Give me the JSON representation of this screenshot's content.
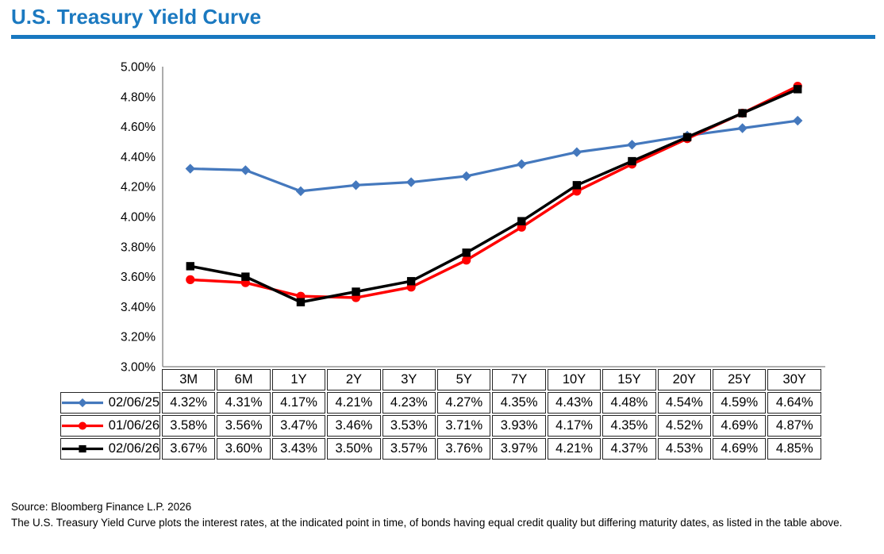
{
  "header": {
    "title": "U.S. Treasury Yield Curve",
    "accent_color": "#1B79C0"
  },
  "chart_data": {
    "type": "line",
    "title": "U.S. Treasury Yield Curve",
    "categories": [
      "3M",
      "6M",
      "1Y",
      "2Y",
      "3Y",
      "5Y",
      "7Y",
      "10Y",
      "15Y",
      "20Y",
      "25Y",
      "30Y"
    ],
    "series": [
      {
        "name": "02/06/25",
        "marker": "diamond",
        "color": "#4478BD",
        "values": [
          4.32,
          4.31,
          4.17,
          4.21,
          4.23,
          4.27,
          4.35,
          4.43,
          4.48,
          4.54,
          4.59,
          4.64
        ]
      },
      {
        "name": "01/06/26",
        "marker": "circle",
        "color": "#FF0000",
        "values": [
          3.58,
          3.56,
          3.47,
          3.46,
          3.53,
          3.71,
          3.93,
          4.17,
          4.35,
          4.52,
          4.69,
          4.87
        ]
      },
      {
        "name": "02/06/26",
        "marker": "square",
        "color": "#000000",
        "values": [
          3.67,
          3.6,
          3.43,
          3.5,
          3.57,
          3.76,
          3.97,
          4.21,
          4.37,
          4.53,
          4.69,
          4.85
        ]
      }
    ],
    "ylim": [
      3.0,
      5.0
    ],
    "y_tick_step": 0.2,
    "y_tick_labels": [
      "5.00%",
      "4.80%",
      "4.60%",
      "4.40%",
      "4.20%",
      "4.00%",
      "3.80%",
      "3.60%",
      "3.40%",
      "3.20%",
      "3.00%"
    ],
    "value_format": "0.00%",
    "grid": false,
    "legend_position": "table-left",
    "axis_color": "#808080"
  },
  "footer": {
    "source": "Source: Bloomberg Finance L.P. 2026",
    "description": "The U.S. Treasury Yield Curve plots the interest rates, at the indicated point in time, of bonds having equal credit quality but differing maturity dates, as listed in the table above."
  }
}
